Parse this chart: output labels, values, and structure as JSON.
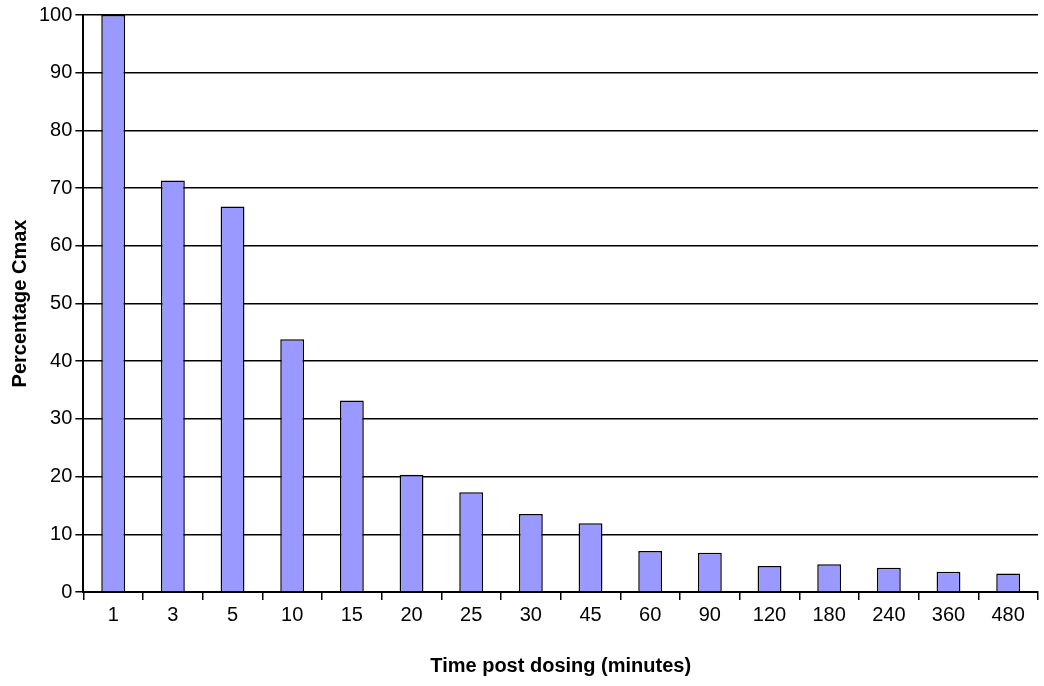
{
  "chart_data": {
    "type": "bar",
    "xlabel": "Time post dosing (minutes)",
    "ylabel": "Percentage Cmax",
    "categories": [
      "1",
      "3",
      "5",
      "10",
      "15",
      "20",
      "25",
      "30",
      "45",
      "60",
      "90",
      "120",
      "180",
      "240",
      "360",
      "480"
    ],
    "values": [
      100,
      71.3,
      66.8,
      43.8,
      33.2,
      20.3,
      17.3,
      13.5,
      11.9,
      7.1,
      6.8,
      4.5,
      4.8,
      4.2,
      3.5,
      3.2
    ],
    "color": "#9999ff",
    "ylim": [
      0,
      100
    ],
    "yticks": [
      0,
      10,
      20,
      30,
      40,
      50,
      60,
      70,
      80,
      90,
      100
    ],
    "grid": "y",
    "legend": false
  }
}
